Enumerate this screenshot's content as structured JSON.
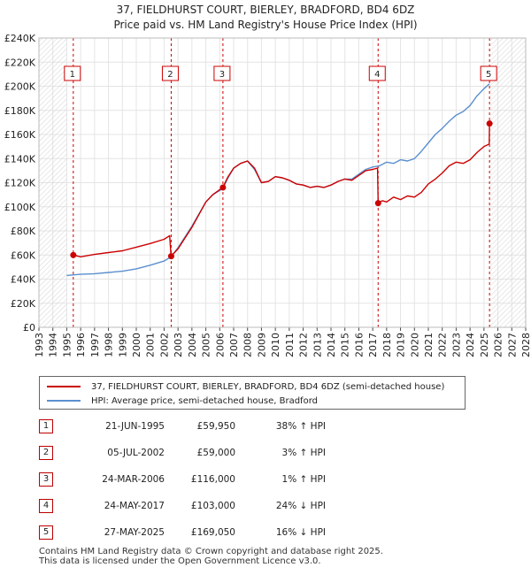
{
  "title_line1": "37, FIELDHURST COURT, BIERLEY, BRADFORD, BD4 6DZ",
  "title_line2": "Price paid vs. HM Land Registry's House Price Index (HPI)",
  "colors": {
    "property": "#cc0000",
    "hpi": "#5b8fcf",
    "marker": "#cc0000",
    "vline": "#cc0000"
  },
  "chart_data": {
    "type": "line",
    "x_range": [
      1993,
      2028
    ],
    "y_range": [
      0,
      240000
    ],
    "x_ticks": [
      "1993",
      "1994",
      "1995",
      "1996",
      "1997",
      "1998",
      "1999",
      "2000",
      "2001",
      "2002",
      "2003",
      "2004",
      "2005",
      "2006",
      "2007",
      "2008",
      "2009",
      "2010",
      "2011",
      "2012",
      "2013",
      "2014",
      "2015",
      "2016",
      "2017",
      "2018",
      "2019",
      "2020",
      "2021",
      "2022",
      "2023",
      "2024",
      "2025",
      "2026",
      "2027",
      "2028"
    ],
    "y_ticks": [
      {
        "value": 0,
        "label": "£0"
      },
      {
        "value": 20000,
        "label": "£20K"
      },
      {
        "value": 40000,
        "label": "£40K"
      },
      {
        "value": 60000,
        "label": "£60K"
      },
      {
        "value": 80000,
        "label": "£80K"
      },
      {
        "value": 100000,
        "label": "£100K"
      },
      {
        "value": 120000,
        "label": "£120K"
      },
      {
        "value": 140000,
        "label": "£140K"
      },
      {
        "value": 160000,
        "label": "£160K"
      },
      {
        "value": 180000,
        "label": "£180K"
      },
      {
        "value": 200000,
        "label": "£200K"
      },
      {
        "value": 220000,
        "label": "£220K"
      },
      {
        "value": 240000,
        "label": "£240K"
      }
    ],
    "series": [
      {
        "name": "37, FIELDHURST COURT, BIERLEY, BRADFORD, BD4 6DZ (semi-detached house)",
        "points": [
          [
            1995.47,
            59950
          ],
          [
            1996.0,
            58500
          ],
          [
            1997.0,
            60500
          ],
          [
            1998.0,
            62000
          ],
          [
            1999.0,
            63500
          ],
          [
            2000.0,
            66500
          ],
          [
            2001.0,
            69500
          ],
          [
            2002.0,
            73000
          ],
          [
            2002.4,
            76000
          ],
          [
            2002.5,
            59000
          ],
          [
            2003.0,
            65000
          ],
          [
            2004.0,
            83000
          ],
          [
            2005.0,
            104000
          ],
          [
            2005.5,
            110000
          ],
          [
            2006.22,
            116000
          ],
          [
            2006.6,
            125000
          ],
          [
            2007.0,
            132000
          ],
          [
            2007.5,
            136000
          ],
          [
            2008.0,
            138000
          ],
          [
            2008.5,
            132000
          ],
          [
            2009.0,
            120000
          ],
          [
            2009.5,
            121000
          ],
          [
            2010.0,
            125000
          ],
          [
            2010.5,
            124000
          ],
          [
            2011.0,
            122000
          ],
          [
            2011.5,
            119000
          ],
          [
            2012.0,
            118000
          ],
          [
            2012.5,
            116000
          ],
          [
            2013.0,
            117000
          ],
          [
            2013.5,
            116000
          ],
          [
            2014.0,
            118000
          ],
          [
            2014.5,
            121000
          ],
          [
            2015.0,
            123000
          ],
          [
            2015.5,
            122000
          ],
          [
            2016.0,
            126000
          ],
          [
            2016.5,
            130000
          ],
          [
            2017.0,
            131000
          ],
          [
            2017.35,
            132000
          ],
          [
            2017.39,
            103000
          ],
          [
            2017.7,
            105000
          ],
          [
            2018.0,
            104000
          ],
          [
            2018.5,
            108000
          ],
          [
            2019.0,
            106000
          ],
          [
            2019.5,
            109000
          ],
          [
            2020.0,
            108000
          ],
          [
            2020.5,
            112000
          ],
          [
            2021.0,
            119000
          ],
          [
            2021.5,
            123000
          ],
          [
            2022.0,
            128000
          ],
          [
            2022.5,
            134000
          ],
          [
            2023.0,
            137000
          ],
          [
            2023.5,
            136000
          ],
          [
            2024.0,
            139000
          ],
          [
            2024.5,
            145000
          ],
          [
            2025.0,
            150000
          ],
          [
            2025.38,
            152000
          ],
          [
            2025.4,
            169050
          ]
        ]
      },
      {
        "name": "HPI: Average price, semi-detached house, Bradford",
        "points": [
          [
            1995.0,
            43000
          ],
          [
            1995.5,
            43500
          ],
          [
            1996.0,
            44000
          ],
          [
            1997.0,
            44500
          ],
          [
            1998.0,
            45500
          ],
          [
            1999.0,
            46500
          ],
          [
            2000.0,
            48500
          ],
          [
            2001.0,
            51500
          ],
          [
            2002.0,
            55000
          ],
          [
            2002.5,
            58500
          ],
          [
            2003.0,
            66000
          ],
          [
            2004.0,
            84000
          ],
          [
            2005.0,
            104000
          ],
          [
            2005.5,
            110000
          ],
          [
            2006.22,
            115000
          ],
          [
            2006.6,
            124000
          ],
          [
            2007.0,
            132000
          ],
          [
            2007.5,
            136000
          ],
          [
            2008.0,
            138000
          ],
          [
            2008.5,
            131000
          ],
          [
            2009.0,
            120000
          ],
          [
            2009.5,
            121000
          ],
          [
            2010.0,
            125000
          ],
          [
            2010.5,
            124000
          ],
          [
            2011.0,
            122000
          ],
          [
            2011.5,
            119000
          ],
          [
            2012.0,
            118000
          ],
          [
            2012.5,
            116000
          ],
          [
            2013.0,
            117000
          ],
          [
            2013.5,
            116000
          ],
          [
            2014.0,
            118000
          ],
          [
            2014.5,
            121000
          ],
          [
            2015.0,
            123000
          ],
          [
            2015.5,
            123000
          ],
          [
            2016.0,
            127000
          ],
          [
            2016.5,
            131000
          ],
          [
            2017.0,
            133000
          ],
          [
            2017.5,
            134000
          ],
          [
            2018.0,
            137000
          ],
          [
            2018.5,
            136000
          ],
          [
            2019.0,
            139000
          ],
          [
            2019.5,
            138000
          ],
          [
            2020.0,
            140000
          ],
          [
            2020.5,
            146000
          ],
          [
            2021.0,
            153000
          ],
          [
            2021.5,
            160000
          ],
          [
            2022.0,
            165000
          ],
          [
            2022.5,
            171000
          ],
          [
            2023.0,
            176000
          ],
          [
            2023.5,
            179000
          ],
          [
            2024.0,
            184000
          ],
          [
            2024.5,
            192000
          ],
          [
            2025.0,
            198000
          ],
          [
            2025.4,
            202000
          ]
        ]
      }
    ],
    "transactions": [
      {
        "num": "1",
        "x": 1995.47,
        "price": 59950,
        "date": "21-JUN-1995",
        "price_label": "£59,950",
        "hpi": "38% ↑ HPI"
      },
      {
        "num": "2",
        "x": 2002.51,
        "price": 59000,
        "date": "05-JUL-2002",
        "price_label": "£59,000",
        "hpi": "3% ↑ HPI"
      },
      {
        "num": "3",
        "x": 2006.23,
        "price": 116000,
        "date": "24-MAR-2006",
        "price_label": "£116,000",
        "hpi": "1% ↑ HPI"
      },
      {
        "num": "4",
        "x": 2017.39,
        "price": 103000,
        "date": "24-MAY-2017",
        "price_label": "£103,000",
        "hpi": "24% ↓ HPI"
      },
      {
        "num": "5",
        "x": 2025.4,
        "price": 169050,
        "date": "27-MAY-2025",
        "price_label": "£169,050",
        "hpi": "16% ↓ HPI"
      }
    ]
  },
  "legend": {
    "property_label": "37, FIELDHURST COURT, BIERLEY, BRADFORD, BD4 6DZ (semi-detached house)",
    "hpi_label": "HPI: Average price, semi-detached house, Bradford"
  },
  "footer_line1": "Contains HM Land Registry data © Crown copyright and database right 2025.",
  "footer_line2": "This data is licensed under the Open Government Licence v3.0."
}
